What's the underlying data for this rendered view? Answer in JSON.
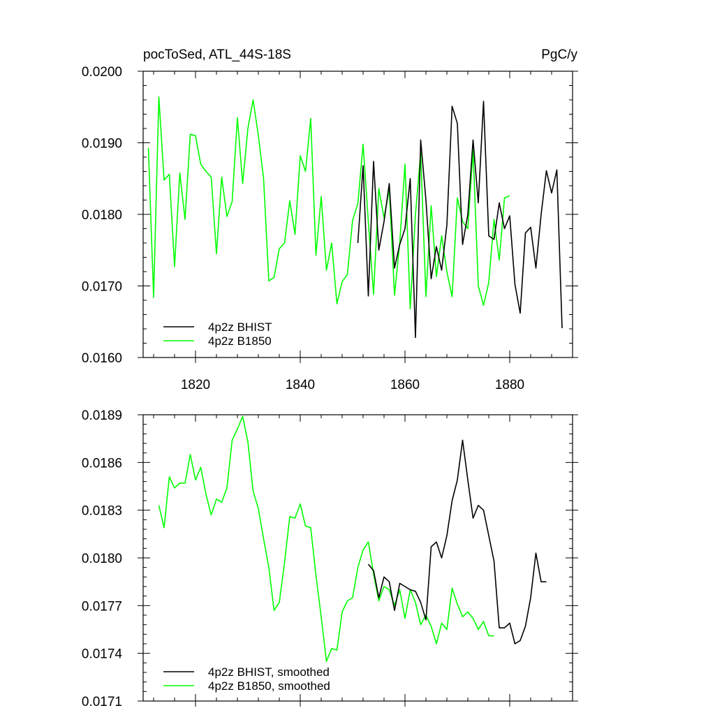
{
  "chart_data": [
    {
      "type": "line",
      "title_left": "pocToSed, ATL_44S-18S",
      "title_right": "PgC/y",
      "xlabel": "",
      "ylabel": "",
      "xlim": [
        1810,
        1892
      ],
      "ylim": [
        0.016,
        0.02
      ],
      "xticks": [
        1820,
        1840,
        1860,
        1880
      ],
      "xtick_labels": [
        "1820",
        "1840",
        "1860",
        "1880"
      ],
      "yticks": [
        0.016,
        0.017,
        0.018,
        0.019,
        0.02
      ],
      "ytick_labels": [
        "0.0160",
        "0.0170",
        "0.0180",
        "0.0190",
        "0.0200"
      ],
      "legend_position": "bottom-left",
      "series": [
        {
          "name": "4p2z BHIST",
          "color": "#000000",
          "x": [
            1851,
            1852,
            1853,
            1854,
            1855,
            1856,
            1857,
            1858,
            1859,
            1860,
            1861,
            1862,
            1863,
            1864,
            1865,
            1866,
            1867,
            1868,
            1869,
            1870,
            1871,
            1872,
            1873,
            1874,
            1875,
            1876,
            1877,
            1878,
            1879,
            1880,
            1881,
            1882,
            1883,
            1884,
            1885,
            1886,
            1887,
            1888,
            1889,
            1890
          ],
          "y": [
            0.0176,
            0.01868,
            0.01686,
            0.01874,
            0.0175,
            0.0179,
            0.01843,
            0.01725,
            0.01758,
            0.0178,
            0.0185,
            0.01628,
            0.01904,
            0.0182,
            0.0171,
            0.01755,
            0.01722,
            0.01785,
            0.01951,
            0.01927,
            0.01758,
            0.018,
            0.01904,
            0.01816,
            0.01958,
            0.0177,
            0.01765,
            0.01816,
            0.0178,
            0.01798,
            0.01702,
            0.01662,
            0.01774,
            0.01782,
            0.01725,
            0.018,
            0.01861,
            0.0183,
            0.01862,
            0.01641
          ]
        },
        {
          "name": "4p2z B1850",
          "color": "#00ff00",
          "x": [
            1811,
            1812,
            1813,
            1814,
            1815,
            1816,
            1817,
            1818,
            1819,
            1820,
            1821,
            1822,
            1823,
            1824,
            1825,
            1826,
            1827,
            1828,
            1829,
            1830,
            1831,
            1832,
            1833,
            1834,
            1835,
            1836,
            1837,
            1838,
            1839,
            1840,
            1841,
            1842,
            1843,
            1844,
            1845,
            1846,
            1847,
            1848,
            1849,
            1850,
            1851,
            1852,
            1853,
            1854,
            1855,
            1856,
            1857,
            1858,
            1859,
            1860,
            1861,
            1862,
            1863,
            1864,
            1865,
            1866,
            1867,
            1868,
            1869,
            1870,
            1871,
            1872,
            1873,
            1874,
            1875,
            1876,
            1877,
            1878,
            1879,
            1880
          ],
          "y": [
            0.01893,
            0.01684,
            0.01964,
            0.01848,
            0.01856,
            0.01727,
            0.01858,
            0.01793,
            0.01912,
            0.0191,
            0.0187,
            0.0186,
            0.01852,
            0.01745,
            0.01852,
            0.01797,
            0.01818,
            0.01935,
            0.01843,
            0.0192,
            0.0196,
            0.0191,
            0.0185,
            0.01707,
            0.01712,
            0.01752,
            0.0176,
            0.01819,
            0.01772,
            0.01882,
            0.0186,
            0.01934,
            0.01743,
            0.01825,
            0.01722,
            0.0176,
            0.01675,
            0.01706,
            0.01716,
            0.01792,
            0.01815,
            0.01898,
            0.0179,
            0.01688,
            0.01836,
            0.01795,
            0.01835,
            0.01687,
            0.0176,
            0.0187,
            0.01668,
            0.018,
            0.01886,
            0.01685,
            0.01812,
            0.01713,
            0.0177,
            0.0172,
            0.01685,
            0.01823,
            0.0179,
            0.0178,
            0.0189,
            0.017,
            0.01673,
            0.01705,
            0.01793,
            0.01736,
            0.01823,
            0.01826
          ]
        }
      ]
    },
    {
      "type": "line",
      "xlabel": "",
      "ylabel": "",
      "xlim": [
        1810,
        1892
      ],
      "ylim": [
        0.0171,
        0.0189
      ],
      "xticks": [
        1820,
        1840,
        1860,
        1880
      ],
      "yticks": [
        0.0171,
        0.0174,
        0.0177,
        0.018,
        0.0183,
        0.0186,
        0.0189
      ],
      "ytick_labels": [
        "0.0171",
        "0.0174",
        "0.0177",
        "0.0180",
        "0.0183",
        "0.0186",
        "0.0189"
      ],
      "legend_position": "bottom-left",
      "series": [
        {
          "name": "4p2z BHIST, smoothed",
          "color": "#000000",
          "x": [
            1853,
            1854,
            1855,
            1856,
            1857,
            1858,
            1859,
            1860,
            1861,
            1862,
            1863,
            1864,
            1865,
            1866,
            1867,
            1868,
            1869,
            1870,
            1871,
            1872,
            1873,
            1874,
            1875,
            1876,
            1877,
            1878,
            1879,
            1880,
            1881,
            1882,
            1883,
            1884,
            1885,
            1886,
            1887
          ],
          "y": [
            0.01796,
            0.01792,
            0.01775,
            0.01788,
            0.01785,
            0.01767,
            0.01784,
            0.01782,
            0.0178,
            0.01779,
            0.01772,
            0.01761,
            0.01807,
            0.0181,
            0.018,
            0.01814,
            0.01836,
            0.01849,
            0.01874,
            0.01849,
            0.01825,
            0.01833,
            0.0183,
            0.01814,
            0.01798,
            0.01756,
            0.01756,
            0.01759,
            0.01746,
            0.01748,
            0.01757,
            0.01775,
            0.01803,
            0.01785,
            0.01785
          ]
        },
        {
          "name": "4p2z B1850, smoothed",
          "color": "#00ff00",
          "x": [
            1813,
            1814,
            1815,
            1816,
            1817,
            1818,
            1819,
            1820,
            1821,
            1822,
            1823,
            1824,
            1825,
            1826,
            1827,
            1828,
            1829,
            1830,
            1831,
            1832,
            1833,
            1834,
            1835,
            1836,
            1837,
            1838,
            1839,
            1840,
            1841,
            1842,
            1843,
            1844,
            1845,
            1846,
            1847,
            1848,
            1849,
            1850,
            1851,
            1852,
            1853,
            1854,
            1855,
            1856,
            1857,
            1858,
            1859,
            1860,
            1861,
            1862,
            1863,
            1864,
            1865,
            1866,
            1867,
            1868,
            1869,
            1870,
            1871,
            1872,
            1873,
            1874,
            1875,
            1876,
            1877
          ],
          "y": [
            0.01833,
            0.01819,
            0.01851,
            0.01844,
            0.01847,
            0.01847,
            0.01865,
            0.01849,
            0.01857,
            0.0184,
            0.01827,
            0.01837,
            0.01835,
            0.01844,
            0.01874,
            0.01881,
            0.01889,
            0.01873,
            0.01842,
            0.01831,
            0.01812,
            0.01794,
            0.01767,
            0.01772,
            0.01797,
            0.01826,
            0.01825,
            0.01834,
            0.0182,
            0.01819,
            0.01789,
            0.01763,
            0.01735,
            0.01743,
            0.01742,
            0.01766,
            0.01773,
            0.01775,
            0.01794,
            0.01805,
            0.0181,
            0.0179,
            0.01773,
            0.01782,
            0.0178,
            0.0177,
            0.0178,
            0.01762,
            0.0178,
            0.01772,
            0.01758,
            0.01764,
            0.01757,
            0.01746,
            0.01759,
            0.01755,
            0.01781,
            0.01771,
            0.01763,
            0.01766,
            0.01762,
            0.01755,
            0.0176,
            0.01751,
            0.01751
          ]
        }
      ]
    }
  ]
}
